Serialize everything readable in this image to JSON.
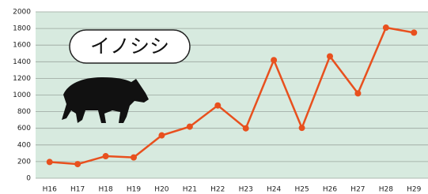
{
  "chart_data": {
    "type": "line",
    "title": "イノシシ",
    "categories": [
      "H16",
      "H17",
      "H18",
      "H19",
      "H20",
      "H21",
      "H22",
      "H23",
      "H24",
      "H25",
      "H26",
      "H27",
      "H28",
      "H29"
    ],
    "values": [
      195,
      170,
      265,
      250,
      515,
      620,
      875,
      600,
      1420,
      605,
      1465,
      1020,
      1810,
      1750
    ],
    "color": "#e8501e",
    "ylim": [
      0,
      2000
    ],
    "yticks": [
      0,
      200,
      400,
      600,
      800,
      1000,
      1200,
      1400,
      1600,
      1800,
      2000
    ],
    "grid": true
  }
}
